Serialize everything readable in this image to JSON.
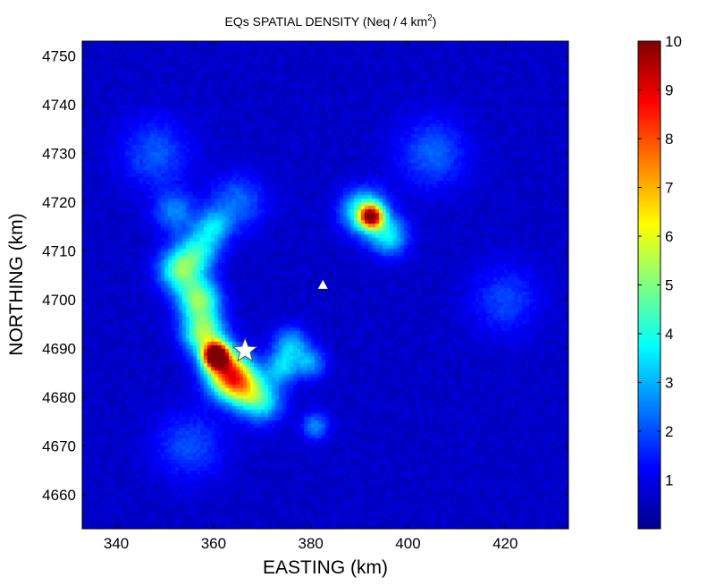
{
  "chart_data": {
    "type": "heatmap",
    "title": "EQs SPATIAL DENSITY (Neq / 4 km",
    "title_superscript": "2",
    "title_suffix": ")",
    "xlabel": "EASTING (km)",
    "ylabel": "NORTHING (km)",
    "xlim": [
      333,
      433
    ],
    "ylim": [
      4653,
      4753
    ],
    "xticks": [
      "340",
      "360",
      "380",
      "400",
      "420"
    ],
    "yticks": [
      "4660",
      "4670",
      "4680",
      "4690",
      "4700",
      "4710",
      "4720",
      "4730",
      "4740",
      "4750"
    ],
    "colormap": "jet",
    "color_range": [
      0,
      10
    ],
    "colorbar_ticks": [
      "1",
      "2",
      "3",
      "4",
      "5",
      "6",
      "7",
      "8",
      "9",
      "10"
    ],
    "background_value": 0.7,
    "density_features": [
      {
        "x": 360.5,
        "y": 4688.5,
        "peak": 10,
        "radius_km": 1.8,
        "note": "maximum"
      },
      {
        "x": 363,
        "y": 4685,
        "peak": 6.5,
        "radius_km": 3.2
      },
      {
        "x": 358,
        "y": 4693,
        "peak": 4.5,
        "radius_km": 3.0
      },
      {
        "x": 357,
        "y": 4700,
        "peak": 4.2,
        "radius_km": 3.0
      },
      {
        "x": 353,
        "y": 4706,
        "peak": 3.8,
        "radius_km": 3.0
      },
      {
        "x": 357,
        "y": 4710,
        "peak": 2.8,
        "radius_km": 3.0
      },
      {
        "x": 360,
        "y": 4715,
        "peak": 2.2,
        "radius_km": 2.5
      },
      {
        "x": 352,
        "y": 4718,
        "peak": 1.8,
        "radius_km": 3.0
      },
      {
        "x": 366,
        "y": 4682,
        "peak": 3.6,
        "radius_km": 3.0
      },
      {
        "x": 370,
        "y": 4679,
        "peak": 2.8,
        "radius_km": 3.0
      },
      {
        "x": 374,
        "y": 4686,
        "peak": 2.4,
        "radius_km": 2.5
      },
      {
        "x": 376,
        "y": 4691,
        "peak": 2.2,
        "radius_km": 2.5
      },
      {
        "x": 380,
        "y": 4687,
        "peak": 2.0,
        "radius_km": 2.2
      },
      {
        "x": 381,
        "y": 4674,
        "peak": 1.9,
        "radius_km": 2.0
      },
      {
        "x": 392.5,
        "y": 4717,
        "peak": 6.8,
        "radius_km": 1.6
      },
      {
        "x": 391,
        "y": 4718,
        "peak": 3.8,
        "radius_km": 3.2
      },
      {
        "x": 396,
        "y": 4713,
        "peak": 2.8,
        "radius_km": 2.8
      },
      {
        "x": 365,
        "y": 4720,
        "peak": 1.6,
        "radius_km": 4.0
      },
      {
        "x": 405,
        "y": 4730,
        "peak": 1.5,
        "radius_km": 5.0
      },
      {
        "x": 348,
        "y": 4730,
        "peak": 1.4,
        "radius_km": 5.0
      },
      {
        "x": 420,
        "y": 4700,
        "peak": 1.2,
        "radius_km": 5.0
      },
      {
        "x": 355,
        "y": 4670,
        "peak": 1.3,
        "radius_km": 5.0
      }
    ],
    "markers": [
      {
        "type": "star",
        "x": 366.5,
        "y": 4689.5,
        "color": "#ffffff"
      },
      {
        "type": "triangle",
        "x": 382.5,
        "y": 4703,
        "color": "#ffffff"
      }
    ]
  }
}
